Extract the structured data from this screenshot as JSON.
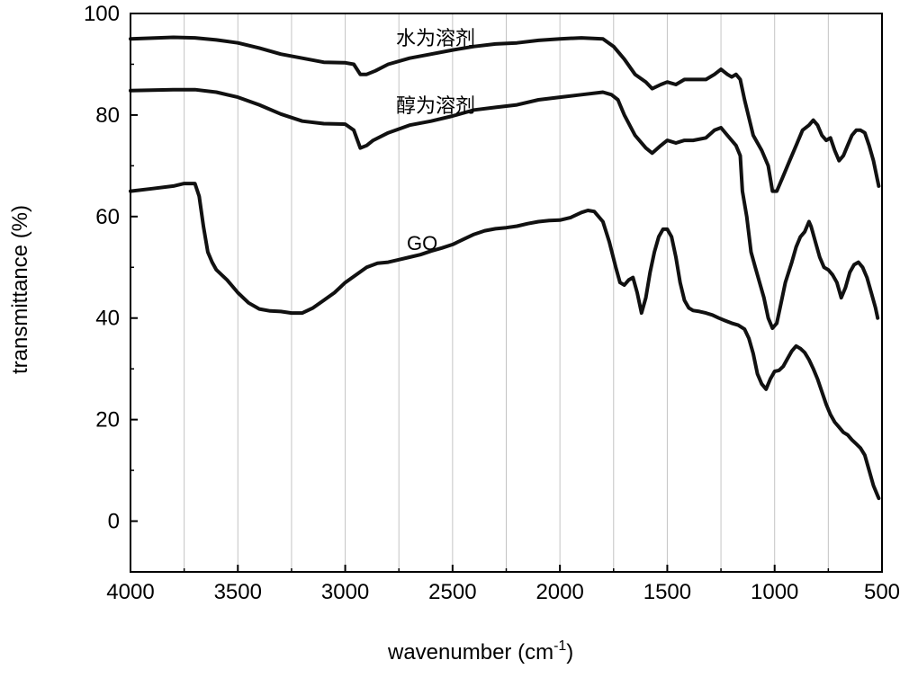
{
  "chart_data": {
    "type": "line",
    "title": "",
    "xlabel": "wavenumber (cm",
    "xlabel_sup": "-1",
    "xlabel_close": ")",
    "ylabel": "transmittance (%)",
    "xlim": [
      4000,
      500
    ],
    "ylim": [
      -10,
      100
    ],
    "x_reversed": true,
    "grid": "vertical-minor",
    "x_ticks": [
      "4000",
      "3500",
      "3000",
      "2500",
      "2000",
      "1500",
      "1000",
      "500"
    ],
    "y_ticks": [
      "0",
      "20",
      "40",
      "60",
      "80",
      "100"
    ],
    "line_color": "#111111",
    "annotations": [
      "水为溶剂",
      "醇为溶剂",
      "GO"
    ],
    "series": [
      {
        "points": [
          [
            4000,
            95
          ],
          [
            3800,
            95.3
          ],
          [
            3700,
            95.2
          ],
          [
            3600,
            94.8
          ],
          [
            3500,
            94.2
          ],
          [
            3400,
            93.2
          ],
          [
            3300,
            92
          ],
          [
            3200,
            91.2
          ],
          [
            3100,
            90.4
          ],
          [
            3000,
            90.3
          ],
          [
            2960,
            90
          ],
          [
            2930,
            88
          ],
          [
            2900,
            88
          ],
          [
            2860,
            88.7
          ],
          [
            2800,
            90
          ],
          [
            2700,
            91.2
          ],
          [
            2600,
            92
          ],
          [
            2500,
            92.8
          ],
          [
            2400,
            93.5
          ],
          [
            2300,
            94
          ],
          [
            2200,
            94.2
          ],
          [
            2100,
            94.7
          ],
          [
            2000,
            95
          ],
          [
            1900,
            95.2
          ],
          [
            1800,
            95
          ],
          [
            1750,
            93.5
          ],
          [
            1700,
            91
          ],
          [
            1650,
            88
          ],
          [
            1600,
            86.5
          ],
          [
            1570,
            85.2
          ],
          [
            1530,
            86
          ],
          [
            1500,
            86.5
          ],
          [
            1460,
            86
          ],
          [
            1420,
            87
          ],
          [
            1380,
            87
          ],
          [
            1320,
            87
          ],
          [
            1280,
            88
          ],
          [
            1250,
            89
          ],
          [
            1220,
            88
          ],
          [
            1200,
            87.5
          ],
          [
            1180,
            88
          ],
          [
            1160,
            87
          ],
          [
            1140,
            83
          ],
          [
            1100,
            76
          ],
          [
            1060,
            73
          ],
          [
            1030,
            70
          ],
          [
            1010,
            65
          ],
          [
            990,
            65
          ],
          [
            960,
            68
          ],
          [
            930,
            71
          ],
          [
            900,
            74
          ],
          [
            870,
            77
          ],
          [
            840,
            78
          ],
          [
            820,
            79
          ],
          [
            800,
            78
          ],
          [
            780,
            76
          ],
          [
            760,
            75
          ],
          [
            740,
            75.5
          ],
          [
            720,
            73
          ],
          [
            700,
            71
          ],
          [
            680,
            72
          ],
          [
            660,
            74
          ],
          [
            640,
            76
          ],
          [
            620,
            77
          ],
          [
            600,
            77
          ],
          [
            580,
            76.5
          ],
          [
            560,
            74
          ],
          [
            540,
            71
          ],
          [
            520,
            67
          ],
          [
            515,
            66
          ]
        ]
      },
      {
        "points": [
          [
            4000,
            84.8
          ],
          [
            3900,
            84.9
          ],
          [
            3800,
            85
          ],
          [
            3700,
            85
          ],
          [
            3600,
            84.5
          ],
          [
            3500,
            83.5
          ],
          [
            3400,
            82
          ],
          [
            3300,
            80.2
          ],
          [
            3200,
            78.8
          ],
          [
            3100,
            78.3
          ],
          [
            3000,
            78.2
          ],
          [
            2960,
            77
          ],
          [
            2930,
            73.5
          ],
          [
            2900,
            74
          ],
          [
            2870,
            75
          ],
          [
            2800,
            76.5
          ],
          [
            2700,
            78
          ],
          [
            2600,
            78.8
          ],
          [
            2500,
            79.8
          ],
          [
            2400,
            81
          ],
          [
            2300,
            81.5
          ],
          [
            2200,
            82
          ],
          [
            2100,
            83
          ],
          [
            2000,
            83.5
          ],
          [
            1900,
            84
          ],
          [
            1800,
            84.5
          ],
          [
            1760,
            84
          ],
          [
            1730,
            83
          ],
          [
            1700,
            80
          ],
          [
            1650,
            76
          ],
          [
            1600,
            73.5
          ],
          [
            1570,
            72.5
          ],
          [
            1530,
            74
          ],
          [
            1500,
            75
          ],
          [
            1460,
            74.5
          ],
          [
            1420,
            75
          ],
          [
            1380,
            75
          ],
          [
            1320,
            75.5
          ],
          [
            1280,
            77
          ],
          [
            1250,
            77.5
          ],
          [
            1220,
            76
          ],
          [
            1180,
            74
          ],
          [
            1160,
            72
          ],
          [
            1150,
            65
          ],
          [
            1130,
            60
          ],
          [
            1110,
            53
          ],
          [
            1090,
            50
          ],
          [
            1070,
            47
          ],
          [
            1050,
            44
          ],
          [
            1030,
            40
          ],
          [
            1010,
            38
          ],
          [
            990,
            39
          ],
          [
            970,
            43
          ],
          [
            950,
            47
          ],
          [
            920,
            51
          ],
          [
            900,
            54
          ],
          [
            880,
            56
          ],
          [
            860,
            57
          ],
          [
            840,
            59
          ],
          [
            830,
            58
          ],
          [
            810,
            55
          ],
          [
            790,
            52
          ],
          [
            770,
            50
          ],
          [
            750,
            49.5
          ],
          [
            730,
            48.5
          ],
          [
            710,
            47
          ],
          [
            690,
            44
          ],
          [
            670,
            46
          ],
          [
            650,
            49
          ],
          [
            630,
            50.5
          ],
          [
            610,
            51
          ],
          [
            590,
            50
          ],
          [
            570,
            48
          ],
          [
            550,
            45
          ],
          [
            530,
            42
          ],
          [
            520,
            40
          ]
        ]
      },
      {
        "points": [
          [
            4000,
            65
          ],
          [
            3900,
            65.5
          ],
          [
            3800,
            66
          ],
          [
            3750,
            66.5
          ],
          [
            3700,
            66.5
          ],
          [
            3680,
            64
          ],
          [
            3660,
            58
          ],
          [
            3640,
            53
          ],
          [
            3620,
            51
          ],
          [
            3600,
            49.5
          ],
          [
            3550,
            47.5
          ],
          [
            3500,
            45
          ],
          [
            3450,
            43
          ],
          [
            3400,
            41.8
          ],
          [
            3350,
            41.4
          ],
          [
            3300,
            41.3
          ],
          [
            3250,
            41
          ],
          [
            3200,
            41
          ],
          [
            3150,
            42
          ],
          [
            3100,
            43.5
          ],
          [
            3050,
            45
          ],
          [
            3000,
            47
          ],
          [
            2950,
            48.5
          ],
          [
            2900,
            50
          ],
          [
            2850,
            50.8
          ],
          [
            2800,
            51
          ],
          [
            2750,
            51.5
          ],
          [
            2700,
            52
          ],
          [
            2650,
            52.5
          ],
          [
            2600,
            53.2
          ],
          [
            2550,
            53.8
          ],
          [
            2500,
            54.5
          ],
          [
            2450,
            55.5
          ],
          [
            2400,
            56.5
          ],
          [
            2350,
            57.2
          ],
          [
            2300,
            57.6
          ],
          [
            2250,
            57.8
          ],
          [
            2200,
            58.1
          ],
          [
            2150,
            58.6
          ],
          [
            2100,
            59
          ],
          [
            2050,
            59.2
          ],
          [
            2000,
            59.3
          ],
          [
            1950,
            59.8
          ],
          [
            1900,
            60.8
          ],
          [
            1870,
            61.2
          ],
          [
            1840,
            61
          ],
          [
            1800,
            59
          ],
          [
            1770,
            55
          ],
          [
            1740,
            50
          ],
          [
            1720,
            47
          ],
          [
            1700,
            46.5
          ],
          [
            1680,
            47.5
          ],
          [
            1660,
            48
          ],
          [
            1640,
            45
          ],
          [
            1620,
            41
          ],
          [
            1600,
            44
          ],
          [
            1580,
            49
          ],
          [
            1560,
            53
          ],
          [
            1540,
            56
          ],
          [
            1520,
            57.5
          ],
          [
            1500,
            57.5
          ],
          [
            1480,
            56
          ],
          [
            1460,
            52
          ],
          [
            1440,
            47
          ],
          [
            1420,
            43.5
          ],
          [
            1400,
            42
          ],
          [
            1380,
            41.5
          ],
          [
            1350,
            41.3
          ],
          [
            1320,
            41
          ],
          [
            1290,
            40.6
          ],
          [
            1260,
            40
          ],
          [
            1230,
            39.5
          ],
          [
            1200,
            39
          ],
          [
            1170,
            38.6
          ],
          [
            1140,
            37.8
          ],
          [
            1120,
            36
          ],
          [
            1100,
            33
          ],
          [
            1080,
            29
          ],
          [
            1060,
            27
          ],
          [
            1040,
            26
          ],
          [
            1020,
            28
          ],
          [
            1000,
            29.5
          ],
          [
            980,
            29.7
          ],
          [
            960,
            30.5
          ],
          [
            940,
            32
          ],
          [
            920,
            33.5
          ],
          [
            900,
            34.5
          ],
          [
            880,
            34
          ],
          [
            860,
            33.2
          ],
          [
            840,
            31.8
          ],
          [
            820,
            30
          ],
          [
            800,
            28
          ],
          [
            780,
            25.5
          ],
          [
            760,
            23
          ],
          [
            740,
            21
          ],
          [
            720,
            19.5
          ],
          [
            700,
            18.5
          ],
          [
            680,
            17.5
          ],
          [
            660,
            17
          ],
          [
            640,
            16
          ],
          [
            620,
            15.2
          ],
          [
            600,
            14.4
          ],
          [
            580,
            13
          ],
          [
            560,
            10
          ],
          [
            540,
            7
          ],
          [
            520,
            5
          ],
          [
            515,
            4.5
          ]
        ]
      }
    ]
  }
}
